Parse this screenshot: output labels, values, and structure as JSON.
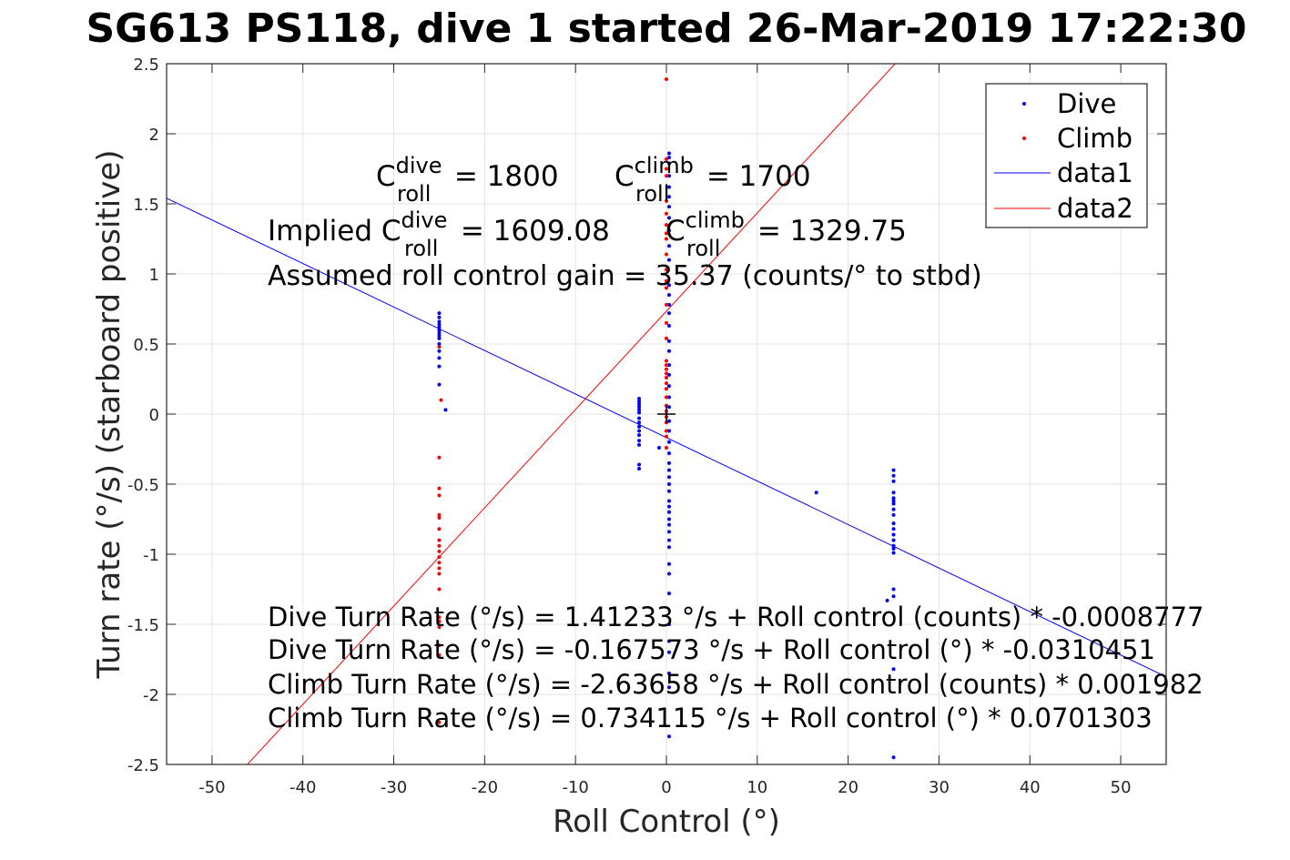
{
  "chart_data": {
    "type": "scatter",
    "title": "SG613 PS118, dive 1 started 26-Mar-2019 17:22:30",
    "xlabel": "Roll Control (°)",
    "ylabel": "Turn rate (°/s) (starboard positive)",
    "xlim": [
      -55,
      55
    ],
    "ylim": [
      -2.5,
      2.5
    ],
    "xticks": [
      -50,
      -40,
      -30,
      -20,
      -10,
      0,
      10,
      20,
      30,
      40,
      50
    ],
    "yticks": [
      -2.5,
      -2,
      -1.5,
      -1,
      -0.5,
      0,
      0.5,
      1,
      1.5,
      2,
      2.5
    ],
    "xtick_labels": [
      "-50",
      "-40",
      "-30",
      "-20",
      "-10",
      "0",
      "10",
      "20",
      "30",
      "40",
      "50"
    ],
    "ytick_labels": [
      "-2.5",
      "-2",
      "-1.5",
      "-1",
      "-0.5",
      "0",
      "0.5",
      "1",
      "1.5",
      "2",
      "2.5"
    ],
    "grid": true,
    "legend_position": "top-right",
    "legend": [
      "Dive",
      "Climb",
      "data1",
      "data2"
    ],
    "series": [
      {
        "name": "Dive",
        "kind": "points",
        "color": "#0000ff",
        "points": [
          [
            -25,
            0.72
          ],
          [
            -25,
            0.69
          ],
          [
            -25,
            0.66
          ],
          [
            -25,
            0.64
          ],
          [
            -25,
            0.62
          ],
          [
            -25,
            0.6
          ],
          [
            -25,
            0.58
          ],
          [
            -25,
            0.56
          ],
          [
            -25,
            0.54
          ],
          [
            -25,
            0.5
          ],
          [
            -25,
            0.45
          ],
          [
            -25,
            0.4
          ],
          [
            -25,
            0.34
          ],
          [
            -25,
            0.21
          ],
          [
            -24.3,
            0.03
          ],
          [
            -3,
            0.11
          ],
          [
            -3,
            0.09
          ],
          [
            -3,
            0.07
          ],
          [
            -3,
            0.05
          ],
          [
            -3,
            0.03
          ],
          [
            -3,
            0.01
          ],
          [
            -3,
            -0.03
          ],
          [
            -3,
            -0.06
          ],
          [
            -3,
            -0.09
          ],
          [
            -3,
            -0.12
          ],
          [
            -3,
            -0.15
          ],
          [
            -3,
            -0.19
          ],
          [
            -3,
            -0.22
          ],
          [
            -3,
            -0.36
          ],
          [
            -3,
            -0.39
          ],
          [
            -0.8,
            -0.24
          ],
          [
            0.3,
            1.86
          ],
          [
            0.3,
            1.83
          ],
          [
            0.3,
            1.79
          ],
          [
            0.3,
            1.7
          ],
          [
            0.3,
            1.62
          ],
          [
            0.3,
            1.55
          ],
          [
            0.3,
            1.48
          ],
          [
            0.3,
            1.4
          ],
          [
            0.3,
            1.31
          ],
          [
            0.3,
            1.2
          ],
          [
            0.3,
            1.1
          ],
          [
            0.3,
            0.92
          ],
          [
            0.3,
            0.85
          ],
          [
            0.3,
            0.78
          ],
          [
            0.3,
            0.72
          ],
          [
            0.3,
            0.63
          ],
          [
            0.3,
            0.52
          ],
          [
            0.3,
            0.45
          ],
          [
            0.3,
            0.35
          ],
          [
            0.3,
            0.28
          ],
          [
            0.3,
            0.2
          ],
          [
            0.3,
            0.12
          ],
          [
            0.3,
            0.05
          ],
          [
            0.3,
            -0.05
          ],
          [
            0.3,
            -0.12
          ],
          [
            0.3,
            -0.2
          ],
          [
            0.3,
            -0.28
          ],
          [
            0.3,
            -0.35
          ],
          [
            0.3,
            -0.4
          ],
          [
            0.3,
            -0.45
          ],
          [
            0.3,
            -0.5
          ],
          [
            0.3,
            -0.55
          ],
          [
            0.3,
            -0.62
          ],
          [
            0.3,
            -0.66
          ],
          [
            0.3,
            -0.7
          ],
          [
            0.3,
            -0.75
          ],
          [
            0.3,
            -0.79
          ],
          [
            0.3,
            -0.84
          ],
          [
            0.3,
            -0.9
          ],
          [
            0.3,
            -0.95
          ],
          [
            0.3,
            -1.07
          ],
          [
            0.3,
            -1.14
          ],
          [
            0.3,
            -1.28
          ],
          [
            0.3,
            -1.5
          ],
          [
            0.3,
            -1.62
          ],
          [
            0.3,
            -1.7
          ],
          [
            0.3,
            -1.85
          ],
          [
            0.3,
            -1.95
          ],
          [
            0.3,
            -2.3
          ],
          [
            16.5,
            -0.56
          ],
          [
            24.3,
            -1.33
          ],
          [
            25,
            -0.4
          ],
          [
            25,
            -0.44
          ],
          [
            25,
            -0.48
          ],
          [
            25,
            -0.56
          ],
          [
            25,
            -0.6
          ],
          [
            25,
            -0.62
          ],
          [
            25,
            -0.64
          ],
          [
            25,
            -0.68
          ],
          [
            25,
            -0.72
          ],
          [
            25,
            -0.78
          ],
          [
            25,
            -0.82
          ],
          [
            25,
            -0.86
          ],
          [
            25,
            -0.9
          ],
          [
            25,
            -0.94
          ],
          [
            25,
            -0.96
          ],
          [
            25,
            -0.99
          ],
          [
            25,
            -1.25
          ],
          [
            25,
            -1.3
          ],
          [
            25,
            -1.82
          ],
          [
            25,
            -2.45
          ]
        ]
      },
      {
        "name": "Climb",
        "kind": "points",
        "color": "#ff0000",
        "points": [
          [
            -25,
            0.48
          ],
          [
            -24.8,
            0.1
          ],
          [
            -25,
            -0.31
          ],
          [
            -25,
            -0.53
          ],
          [
            -25,
            -0.58
          ],
          [
            -25,
            -0.72
          ],
          [
            -25,
            -0.74
          ],
          [
            -25,
            -0.82
          ],
          [
            -25,
            -0.9
          ],
          [
            -25,
            -0.94
          ],
          [
            -25,
            -0.98
          ],
          [
            -25,
            -1.02
          ],
          [
            -25,
            -1.06
          ],
          [
            -25,
            -1.1
          ],
          [
            -25,
            -1.14
          ],
          [
            -25,
            -1.25
          ],
          [
            -25,
            -1.45
          ],
          [
            -25,
            -1.48
          ],
          [
            -25,
            -1.52
          ],
          [
            -25,
            -1.65
          ],
          [
            -25,
            -1.72
          ],
          [
            -25,
            -2.2
          ],
          [
            0,
            2.39
          ],
          [
            0,
            1.82
          ],
          [
            0,
            1.75
          ],
          [
            0,
            1.7
          ],
          [
            0,
            1.52
          ],
          [
            0,
            1.43
          ],
          [
            0,
            1.35
          ],
          [
            0,
            1.29
          ],
          [
            0,
            1.25
          ],
          [
            0,
            1.14
          ],
          [
            0,
            1.03
          ],
          [
            0,
            0.95
          ],
          [
            0,
            0.9
          ],
          [
            0,
            0.78
          ],
          [
            0,
            0.65
          ],
          [
            0,
            0.54
          ],
          [
            0,
            0.38
          ],
          [
            0,
            0.35
          ],
          [
            0,
            0.32
          ],
          [
            0,
            0.29
          ],
          [
            0,
            0.26
          ],
          [
            0,
            0.22
          ],
          [
            0,
            0.18
          ],
          [
            0,
            0.12
          ],
          [
            0,
            0.06
          ],
          [
            0,
            0.02
          ],
          [
            0,
            -0.02
          ],
          [
            0,
            -0.06
          ],
          [
            0,
            -0.12
          ],
          [
            0,
            -0.16
          ],
          [
            0,
            -0.24
          ]
        ]
      },
      {
        "name": "data1",
        "kind": "line",
        "color": "#0000ff",
        "intercept": -0.167573,
        "slope": -0.0310451
      },
      {
        "name": "data2",
        "kind": "line",
        "color": "#ff0000",
        "intercept": 0.734115,
        "slope": 0.0701303
      }
    ],
    "origin_marker": [
      0,
      0
    ],
    "annotations": {
      "c_roll_dive": {
        "base": "C",
        "sup": "dive",
        "sub": "roll",
        "rest": " = 1800"
      },
      "c_roll_climb": {
        "base": "C",
        "sup": "climb",
        "sub": "roll",
        "rest": " = 1700"
      },
      "implied_dive": {
        "base": "Implied C",
        "sup": "dive",
        "sub": "roll",
        "rest": " = 1609.08"
      },
      "implied_climb": {
        "base": "C",
        "sup": "climb",
        "sub": "roll",
        "rest": " = 1329.75"
      },
      "gain": "Assumed roll control gain = 35.37 (counts/° to stbd)",
      "equations": [
        "Dive Turn Rate (°/s) = 1.41233 °/s + Roll control (counts) * -0.0008777",
        "Dive Turn Rate (°/s) = -0.167573 °/s + Roll control (°) * -0.0310451",
        "Climb Turn Rate (°/s) = -2.63658 °/s + Roll control (counts) * 0.001982",
        "Climb Turn Rate (°/s) = 0.734115 °/s + Roll control (°) * 0.0701303"
      ]
    }
  }
}
